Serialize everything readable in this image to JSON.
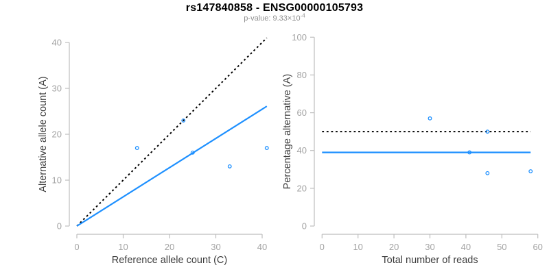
{
  "title": "rs147840858 - ENSG00000105793",
  "subtitle": {
    "prefix": "p-value: 9.33×10",
    "exponent": "-4"
  },
  "colors": {
    "accent_blue": "#1E90FF",
    "dotted_black": "#000000",
    "axis_line": "#bdbdbd",
    "tick_label": "#a3a3a3",
    "axis_label": "#3d3d3d",
    "title": "#000000",
    "subtitle": "#8f8f8f",
    "background": "#ffffff"
  },
  "chart_data": [
    {
      "name": "allele-counts-scatter",
      "type": "scatter",
      "title": "",
      "xlabel": "Reference allele count (C)",
      "ylabel": "Alternative allele count (A)",
      "xlim": [
        0,
        41
      ],
      "ylim": [
        0,
        41
      ],
      "xticks": [
        0,
        10,
        20,
        30,
        40
      ],
      "yticks": [
        0,
        10,
        20,
        30,
        40
      ],
      "grid": false,
      "legend": "none",
      "marker": "open-circle",
      "points": [
        [
          13,
          17
        ],
        [
          23,
          23
        ],
        [
          25,
          16
        ],
        [
          33,
          13
        ],
        [
          41,
          17
        ]
      ],
      "lines": [
        {
          "name": "identity-line",
          "style": "dotted",
          "color": "#000000",
          "x": [
            0,
            41
          ],
          "y": [
            0,
            41
          ]
        },
        {
          "name": "fitted-ratio-line",
          "style": "solid",
          "color": "#1E90FF",
          "x": [
            0,
            41
          ],
          "y": [
            0,
            26.1
          ]
        }
      ]
    },
    {
      "name": "percentage-vs-reads-scatter",
      "type": "scatter",
      "title": "",
      "xlabel": "Total number of reads",
      "ylabel": "Percentage alternative (A)",
      "xlim": [
        0,
        60
      ],
      "ylim": [
        0,
        100
      ],
      "xticks": [
        0,
        10,
        20,
        30,
        40,
        50,
        60
      ],
      "yticks": [
        0,
        20,
        40,
        60,
        80,
        100
      ],
      "grid": false,
      "legend": "none",
      "marker": "open-circle",
      "points": [
        [
          30,
          57
        ],
        [
          41,
          39
        ],
        [
          46,
          50
        ],
        [
          46,
          28
        ],
        [
          58,
          29
        ]
      ],
      "lines": [
        {
          "name": "null-50-percent-line",
          "style": "dotted",
          "color": "#000000",
          "x": [
            0,
            58
          ],
          "y": [
            50,
            50
          ]
        },
        {
          "name": "mean-percentage-line",
          "style": "solid",
          "color": "#1E90FF",
          "x": [
            0,
            58
          ],
          "y": [
            39,
            39
          ]
        }
      ]
    }
  ]
}
